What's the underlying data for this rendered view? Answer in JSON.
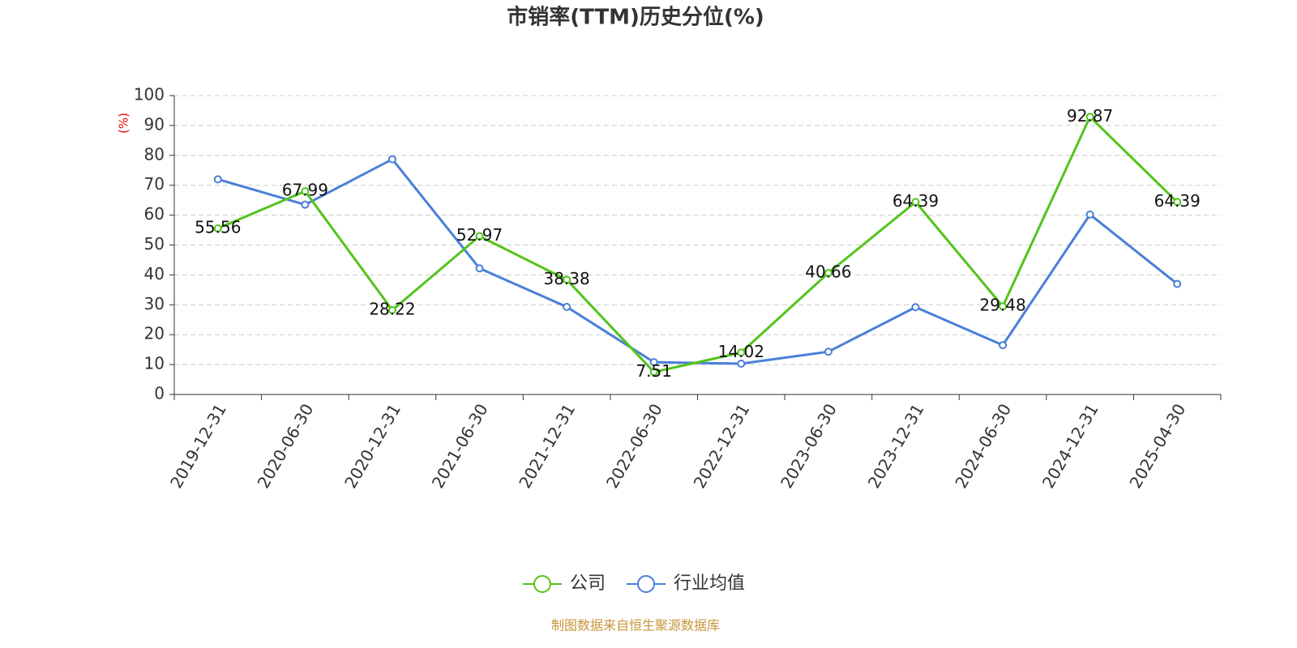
{
  "chart_data": {
    "type": "line",
    "title": "市销率(TTM)历史分位(%)",
    "y_label": "(%)",
    "source": "制图数据来自恒生聚源数据库",
    "categories": [
      "2019-12-31",
      "2020-06-30",
      "2020-12-31",
      "2021-06-30",
      "2021-12-31",
      "2022-06-30",
      "2022-12-31",
      "2023-06-30",
      "2023-12-31",
      "2024-06-30",
      "2024-12-31",
      "2025-04-30"
    ],
    "series": [
      {
        "name": "公司",
        "color": "#52c41a",
        "values": [
          55.56,
          67.99,
          28.22,
          52.97,
          38.38,
          7.51,
          14.02,
          40.66,
          64.39,
          29.48,
          92.87,
          64.39
        ],
        "show_labels": true
      },
      {
        "name": "行业均值",
        "color": "#4a7fd8",
        "values": [
          72,
          63.5,
          78.7,
          42.2,
          29.3,
          10.8,
          10.3,
          14.3,
          29.2,
          16.5,
          60.2,
          37
        ],
        "show_labels": false
      }
    ],
    "ylim": [
      0,
      100
    ],
    "yticks": [
      0,
      10,
      20,
      30,
      40,
      50,
      60,
      70,
      80,
      90,
      100
    ],
    "grid": true
  }
}
